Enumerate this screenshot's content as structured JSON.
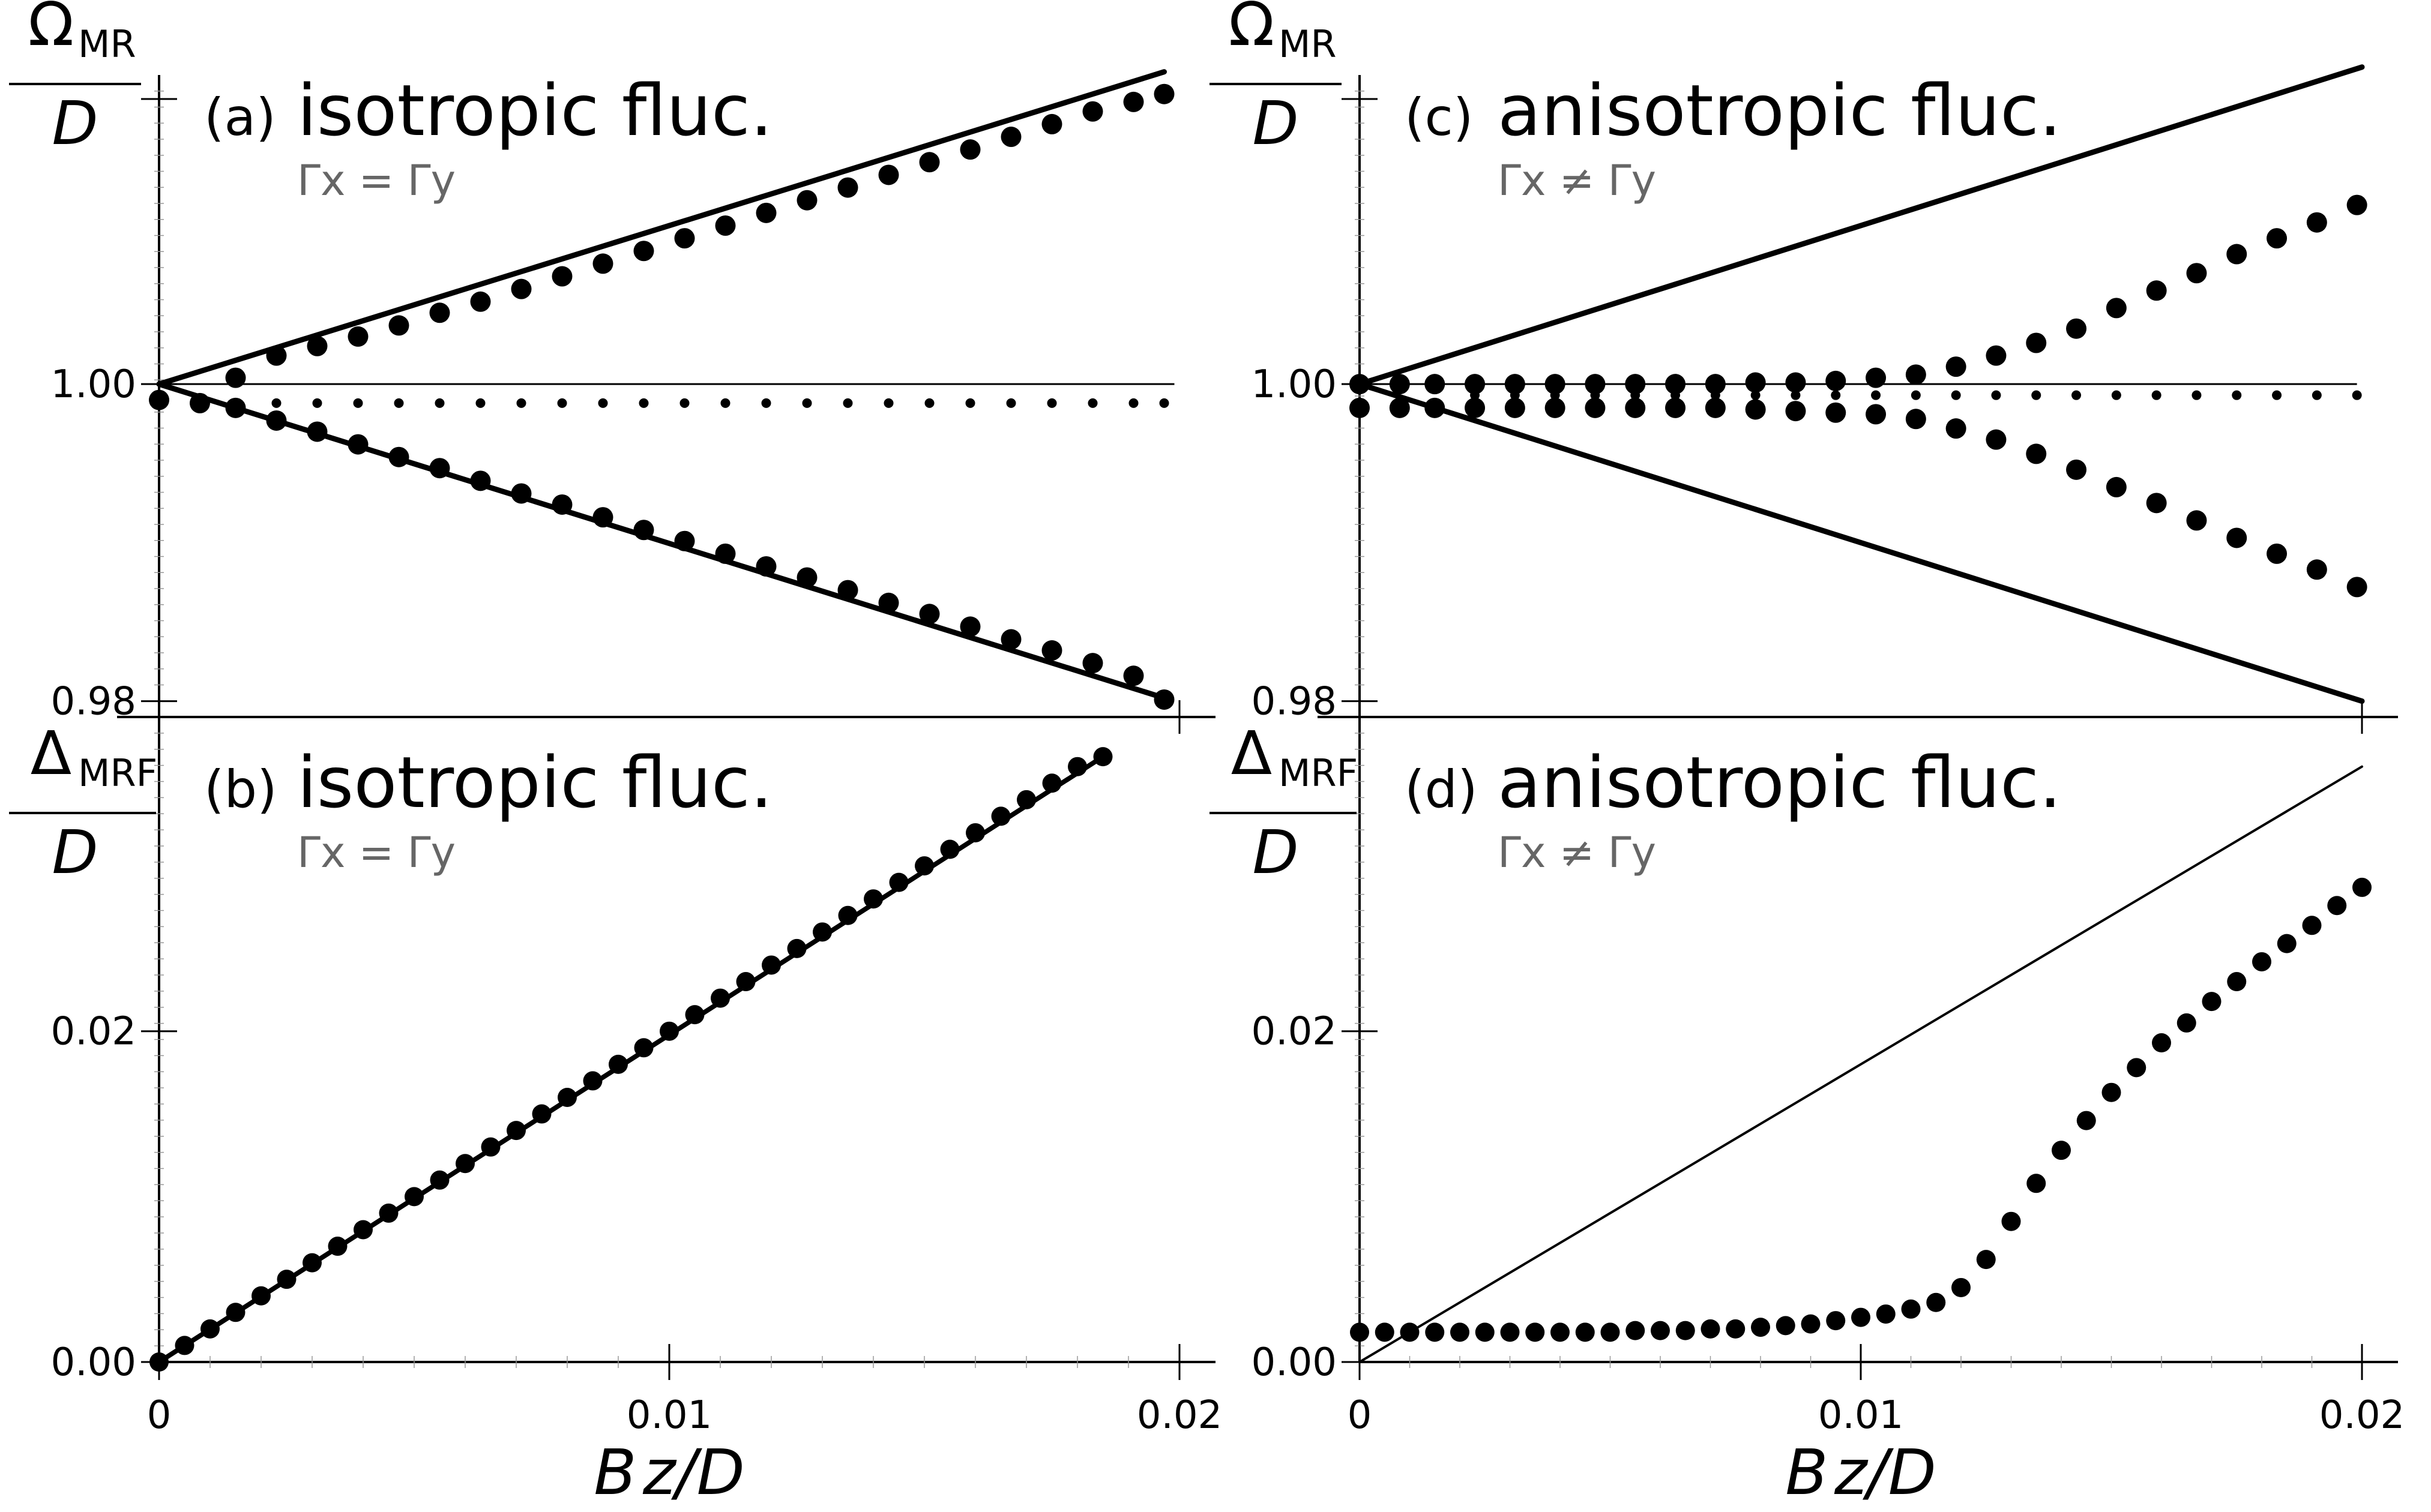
{
  "figure": {
    "colors": {
      "ink": "#000000",
      "condition_text": "#666666"
    }
  },
  "chart_data": [
    {
      "id": "a",
      "type": "line",
      "tag": "(a)",
      "title": "isotropic fluc.",
      "condition": "Γx = Γy",
      "ylabel": {
        "symbol": "Ω",
        "subscript": "MR",
        "denominator": "D"
      },
      "xlabel": "",
      "xlim": [
        0,
        0.02
      ],
      "ylim": [
        0.979,
        1.0195
      ],
      "yticks": [
        {
          "value": 0.98,
          "label": "0.98"
        },
        {
          "value": 1.0,
          "label": "1.00"
        }
      ],
      "xticks": [],
      "hline": 1.0,
      "lines": [
        {
          "x": [
            0,
            0.0197
          ],
          "y": [
            1.0,
            1.0197
          ]
        },
        {
          "x": [
            0,
            0.0197
          ],
          "y": [
            1.0,
            0.9802
          ]
        }
      ],
      "dots_upper": {
        "x": [
          0.0015,
          0.0023,
          0.0031,
          0.0039,
          0.0047,
          0.0055,
          0.0063,
          0.0071,
          0.0079,
          0.0087,
          0.0095,
          0.0103,
          0.0111,
          0.0119,
          0.0127,
          0.0135,
          0.0143,
          0.0151,
          0.0159,
          0.0167,
          0.0175,
          0.0183,
          0.0191,
          0.0197
        ],
        "y": [
          1.0004,
          1.0018,
          1.0024,
          1.003,
          1.0037,
          1.0045,
          1.0052,
          1.006,
          1.0068,
          1.0076,
          1.0084,
          1.0092,
          1.01,
          1.0108,
          1.0116,
          1.0124,
          1.0132,
          1.014,
          1.0148,
          1.0156,
          1.0164,
          1.0172,
          1.0178,
          1.0183
        ]
      },
      "dots_middle": {
        "x": [
          0.0023,
          0.0031,
          0.0039,
          0.0047,
          0.0055,
          0.0063,
          0.0071,
          0.0079,
          0.0087,
          0.0095,
          0.0103,
          0.0111,
          0.0119,
          0.0127,
          0.0135,
          0.0143,
          0.0151,
          0.0159,
          0.0167,
          0.0175,
          0.0183,
          0.0191,
          0.0197
        ],
        "y": [
          0.9988,
          0.9988,
          0.9988,
          0.9988,
          0.9988,
          0.9988,
          0.9988,
          0.9988,
          0.9988,
          0.9988,
          0.9988,
          0.9988,
          0.9988,
          0.9988,
          0.9988,
          0.9988,
          0.9988,
          0.9988,
          0.9988,
          0.9988,
          0.9988,
          0.9988,
          0.9988
        ]
      },
      "dots_lower": {
        "x": [
          0,
          0.0008,
          0.0015,
          0.0023,
          0.0031,
          0.0039,
          0.0047,
          0.0055,
          0.0063,
          0.0071,
          0.0079,
          0.0087,
          0.0095,
          0.0103,
          0.0111,
          0.0119,
          0.0127,
          0.0135,
          0.0143,
          0.0151,
          0.0159,
          0.0167,
          0.0175,
          0.0183,
          0.0191,
          0.0197
        ],
        "y": [
          0.999,
          0.9988,
          0.9985,
          0.9977,
          0.997,
          0.9962,
          0.9954,
          0.9947,
          0.9939,
          0.9931,
          0.9924,
          0.9916,
          0.9908,
          0.9901,
          0.9893,
          0.9885,
          0.9878,
          0.987,
          0.9862,
          0.9855,
          0.9847,
          0.9839,
          0.9832,
          0.9824,
          0.9816,
          0.9801
        ]
      }
    },
    {
      "id": "b",
      "type": "line",
      "tag": "(b)",
      "title": "isotropic fluc.",
      "condition": "Γx = Γy",
      "ylabel": {
        "symbol": "Δ",
        "subscript": "MRF",
        "denominator": "D"
      },
      "xlabel": "B z/D",
      "xlim": [
        0,
        0.02
      ],
      "ylim": [
        0,
        0.039
      ],
      "yticks": [
        {
          "value": 0.0,
          "label": "0.00"
        },
        {
          "value": 0.02,
          "label": "0.02"
        }
      ],
      "xticks": [
        {
          "value": 0,
          "label": "0"
        },
        {
          "value": 0.01,
          "label": "0.01"
        },
        {
          "value": 0.02,
          "label": "0.02"
        }
      ],
      "lines": [
        {
          "x": [
            0,
            0.0185
          ],
          "y": [
            0,
            0.0366
          ]
        }
      ],
      "dots": {
        "x": [
          0,
          0.0005,
          0.001,
          0.0015,
          0.002,
          0.0025,
          0.003,
          0.0035,
          0.004,
          0.0045,
          0.005,
          0.0055,
          0.006,
          0.0065,
          0.007,
          0.0075,
          0.008,
          0.0085,
          0.009,
          0.0095,
          0.01,
          0.0105,
          0.011,
          0.0115,
          0.012,
          0.0125,
          0.013,
          0.0135,
          0.014,
          0.0145,
          0.015,
          0.0155,
          0.016,
          0.0165,
          0.017,
          0.0175,
          0.018,
          0.0185
        ],
        "y": [
          0,
          0.001,
          0.002,
          0.003,
          0.004,
          0.005,
          0.006,
          0.007,
          0.008,
          0.009,
          0.01,
          0.011,
          0.012,
          0.013,
          0.014,
          0.015,
          0.016,
          0.017,
          0.018,
          0.019,
          0.02,
          0.021,
          0.022,
          0.023,
          0.024,
          0.025,
          0.026,
          0.027,
          0.028,
          0.029,
          0.03,
          0.031,
          0.032,
          0.033,
          0.034,
          0.035,
          0.036,
          0.0366
        ]
      }
    },
    {
      "id": "c",
      "type": "line",
      "tag": "(c)",
      "title": "anisotropic fluc.",
      "condition": "Γx ≠ Γy",
      "ylabel": {
        "symbol": "Ω",
        "subscript": "MR",
        "denominator": "D"
      },
      "xlabel": "",
      "xlim": [
        0,
        0.02
      ],
      "ylim": [
        0.979,
        1.0195
      ],
      "yticks": [
        {
          "value": 0.98,
          "label": "0.98"
        },
        {
          "value": 1.0,
          "label": "1.00"
        }
      ],
      "xticks": [],
      "hline": 1.0,
      "lines": [
        {
          "x": [
            0,
            0.02
          ],
          "y": [
            1.0,
            1.02
          ]
        },
        {
          "x": [
            0,
            0.02
          ],
          "y": [
            1.0,
            0.98
          ]
        }
      ],
      "dots_upper": {
        "x": [
          0,
          0.0008,
          0.0015,
          0.0023,
          0.0031,
          0.0039,
          0.0047,
          0.0055,
          0.0063,
          0.0071,
          0.0079,
          0.0087,
          0.0095,
          0.0103,
          0.0111,
          0.0119,
          0.0127,
          0.0135,
          0.0143,
          0.0151,
          0.0159,
          0.0167,
          0.0175,
          0.0183,
          0.0191,
          0.0199
        ],
        "y": [
          1.0,
          1.0,
          1.0,
          1.0,
          1.0,
          1.0,
          1.0,
          1.0,
          1.0,
          1.0,
          1.0001,
          1.0001,
          1.0002,
          1.0004,
          1.0006,
          1.0011,
          1.0018,
          1.0026,
          1.0035,
          1.0048,
          1.0059,
          1.007,
          1.0082,
          1.0092,
          1.0102,
          1.0113
        ]
      },
      "dots_middle": {
        "x": [
          0.0023,
          0.0031,
          0.0039,
          0.0047,
          0.0055,
          0.0063,
          0.0071,
          0.0079,
          0.0087,
          0.0095,
          0.0103,
          0.0111,
          0.0119,
          0.0127,
          0.0135,
          0.0143,
          0.0151,
          0.0159,
          0.0167,
          0.0175,
          0.0183,
          0.0191,
          0.0199
        ],
        "y": [
          0.9993,
          0.9993,
          0.9993,
          0.9993,
          0.9993,
          0.9993,
          0.9993,
          0.9993,
          0.9993,
          0.9993,
          0.9993,
          0.9993,
          0.9993,
          0.9993,
          0.9993,
          0.9993,
          0.9993,
          0.9993,
          0.9993,
          0.9993,
          0.9993,
          0.9993,
          0.9993
        ]
      },
      "dots_lower": {
        "x": [
          0,
          0.0008,
          0.0015,
          0.0023,
          0.0031,
          0.0039,
          0.0047,
          0.0055,
          0.0063,
          0.0071,
          0.0079,
          0.0087,
          0.0095,
          0.0103,
          0.0111,
          0.0119,
          0.0127,
          0.0135,
          0.0143,
          0.0151,
          0.0159,
          0.0167,
          0.0175,
          0.0183,
          0.0191,
          0.0199
        ],
        "y": [
          0.9985,
          0.9985,
          0.9985,
          0.9985,
          0.9985,
          0.9985,
          0.9985,
          0.9985,
          0.9985,
          0.9985,
          0.9984,
          0.9983,
          0.9982,
          0.9981,
          0.9978,
          0.9972,
          0.9965,
          0.9956,
          0.9946,
          0.9935,
          0.9925,
          0.9914,
          0.9903,
          0.9893,
          0.9883,
          0.9872
        ]
      }
    },
    {
      "id": "d",
      "type": "line",
      "tag": "(d)",
      "title": "anisotropic fluc.",
      "condition": "Γx ≠ Γy",
      "ylabel": {
        "symbol": "Δ",
        "subscript": "MRF",
        "denominator": "D"
      },
      "xlabel": "B z/D",
      "xlim": [
        0,
        0.02
      ],
      "ylim": [
        0,
        0.039
      ],
      "yticks": [
        {
          "value": 0.0,
          "label": "0.00"
        },
        {
          "value": 0.02,
          "label": "0.02"
        }
      ],
      "xticks": [
        {
          "value": 0,
          "label": "0"
        },
        {
          "value": 0.01,
          "label": "0.01"
        },
        {
          "value": 0.02,
          "label": "0.02"
        }
      ],
      "lines": [
        {
          "x": [
            0,
            0.02
          ],
          "y": [
            0,
            0.036
          ]
        }
      ],
      "dots": {
        "x": [
          0,
          0.0005,
          0.001,
          0.0015,
          0.002,
          0.0025,
          0.003,
          0.0035,
          0.004,
          0.0045,
          0.005,
          0.0055,
          0.006,
          0.0065,
          0.007,
          0.0075,
          0.008,
          0.0085,
          0.009,
          0.0095,
          0.01,
          0.0105,
          0.011,
          0.0115,
          0.012,
          0.0125,
          0.013,
          0.0135,
          0.014,
          0.0145,
          0.015,
          0.0155,
          0.016,
          0.0165,
          0.017,
          0.0175,
          0.018,
          0.0185,
          0.019,
          0.0195,
          0.02
        ],
        "y": [
          0.0018,
          0.0018,
          0.0018,
          0.0018,
          0.0018,
          0.0018,
          0.0018,
          0.0018,
          0.0018,
          0.0018,
          0.0018,
          0.0019,
          0.0019,
          0.0019,
          0.002,
          0.002,
          0.0021,
          0.0022,
          0.0023,
          0.0025,
          0.0027,
          0.0029,
          0.0032,
          0.0036,
          0.0045,
          0.0062,
          0.0085,
          0.0108,
          0.0128,
          0.0146,
          0.0163,
          0.0178,
          0.0193,
          0.0205,
          0.0218,
          0.023,
          0.0242,
          0.0253,
          0.0264,
          0.0276,
          0.0287
        ]
      }
    }
  ]
}
